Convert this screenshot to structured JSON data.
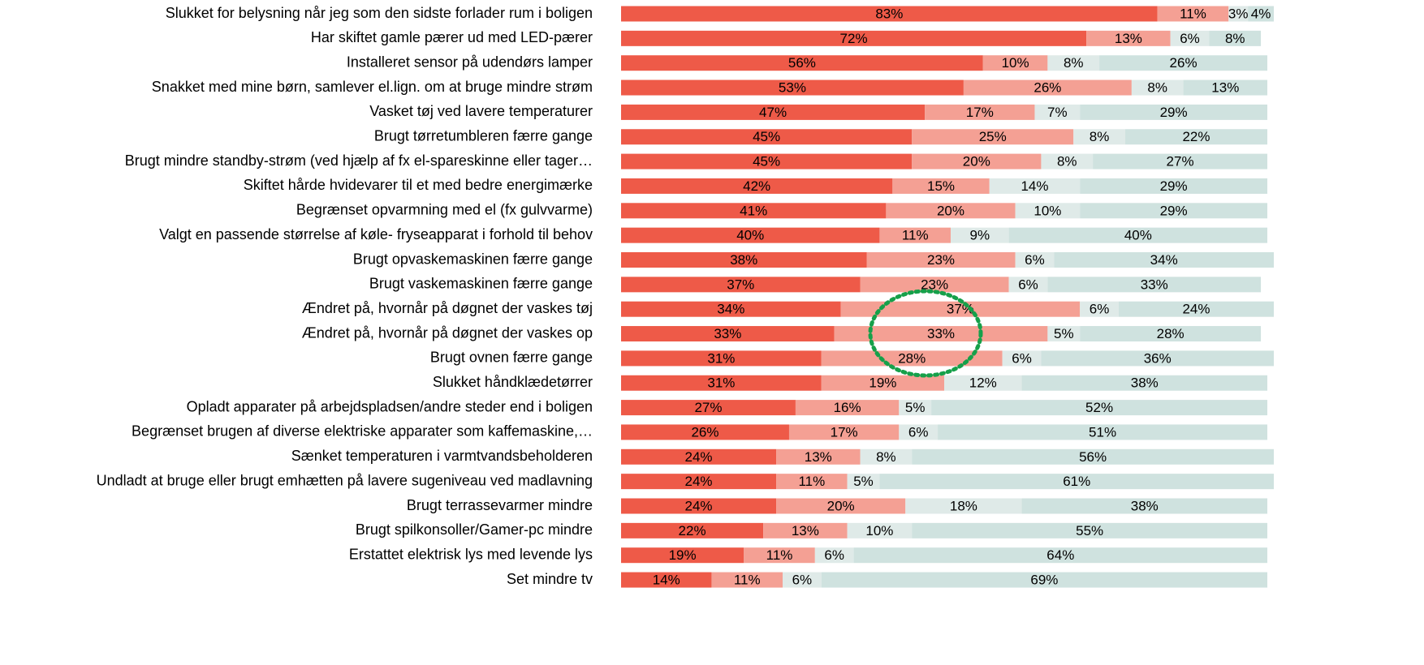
{
  "chart_data": {
    "type": "stacked-bar-horizontal",
    "categories": [
      "Slukket for belysning når jeg som den sidste forlader rum i boligen",
      "Har skiftet gamle pærer ud med LED-pærer",
      "Installeret sensor på udendørs lamper",
      "Snakket med mine børn, samlever el.lign. om at bruge mindre strøm",
      "Vasket tøj ved lavere temperaturer",
      "Brugt tørretumbleren færre gange",
      "Brugt mindre standby-strøm (ved hjælp af fx el-spareskinne eller tager…",
      "Skiftet hårde hvidevarer til et med bedre energimærke",
      "Begrænset opvarmning med el (fx gulvvarme)",
      "Valgt en passende størrelse af køle- fryseapparat i forhold til behov",
      "Brugt opvaskemaskinen færre gange",
      "Brugt vaskemaskinen færre gange",
      "Ændret på, hvornår på døgnet der vaskes tøj",
      "Ændret på, hvornår på døgnet der vaskes op",
      "Brugt ovnen færre gange",
      "Slukket håndklædetørrer",
      "Opladt apparater på arbejdspladsen/andre steder end i boligen",
      "Begrænset brugen af diverse elektriske apparater som kaffemaskine,…",
      "Sænket temperaturen i varmtvandsbeholderen",
      "Undladt at bruge eller brugt emhætten på lavere sugeniveau ved madlavning",
      "Brugt terrassevarmer mindre",
      "Brugt spilkonsoller/Gamer-pc mindre",
      "Erstattet elektrisk lys med levende lys",
      "Set mindre tv"
    ],
    "series": [
      {
        "color": "#ee5a48",
        "values": [
          83,
          72,
          56,
          53,
          47,
          45,
          45,
          42,
          41,
          40,
          38,
          37,
          34,
          33,
          31,
          31,
          27,
          26,
          24,
          24,
          24,
          22,
          19,
          14
        ],
        "value_labels": [
          "83%",
          "72%",
          "56%",
          "53%",
          "47%",
          "45%",
          "45%",
          "42%",
          "41%",
          "40%",
          "38%",
          "37%",
          "34%",
          "33%",
          "31%",
          "31%",
          "27%",
          "26%",
          "24%",
          "24%",
          "24%",
          "22%",
          "19%",
          "14%"
        ]
      },
      {
        "color": "#f4a094",
        "values": [
          11,
          13,
          10,
          26,
          17,
          25,
          20,
          15,
          20,
          11,
          23,
          23,
          37,
          33,
          28,
          19,
          16,
          17,
          13,
          11,
          20,
          13,
          11,
          11
        ],
        "value_labels": [
          "11%",
          "13%",
          "10%",
          "26%",
          "17%",
          "25%",
          "20%",
          "15%",
          "20%",
          "11%",
          "23%",
          "23%",
          "37%",
          "33%",
          "28%",
          "19%",
          "16%",
          "17%",
          "13%",
          "11%",
          "20%",
          "13%",
          "11%",
          "11%"
        ]
      },
      {
        "color": "#dfeae8",
        "values": [
          3,
          6,
          8,
          8,
          7,
          8,
          8,
          14,
          10,
          9,
          6,
          6,
          6,
          5,
          6,
          12,
          5,
          6,
          8,
          5,
          18,
          10,
          6,
          6
        ],
        "value_labels": [
          "3%",
          "6%",
          "8%",
          "8%",
          "7%",
          "8%",
          "8%",
          "14%",
          "10%",
          "9%",
          "6%",
          "6%",
          "6%",
          "5%",
          "6%",
          "12%",
          "5%",
          "6%",
          "8%",
          "5%",
          "18%",
          "10%",
          "6%",
          "6%"
        ]
      },
      {
        "color": "#cfe2df",
        "values": [
          4,
          8,
          26,
          13,
          29,
          22,
          27,
          29,
          29,
          40,
          34,
          33,
          24,
          28,
          36,
          38,
          52,
          51,
          56,
          61,
          38,
          55,
          64,
          69
        ],
        "value_labels": [
          "4%",
          "8%",
          "26%",
          "13%",
          "29%",
          "22%",
          "27%",
          "29%",
          "29%",
          "40%",
          "34%",
          "33%",
          "24%",
          "28%",
          "36%",
          "38%",
          "52%",
          "51%",
          "56%",
          "61%",
          "38%",
          "55%",
          "64%",
          "69%"
        ]
      }
    ]
  }
}
